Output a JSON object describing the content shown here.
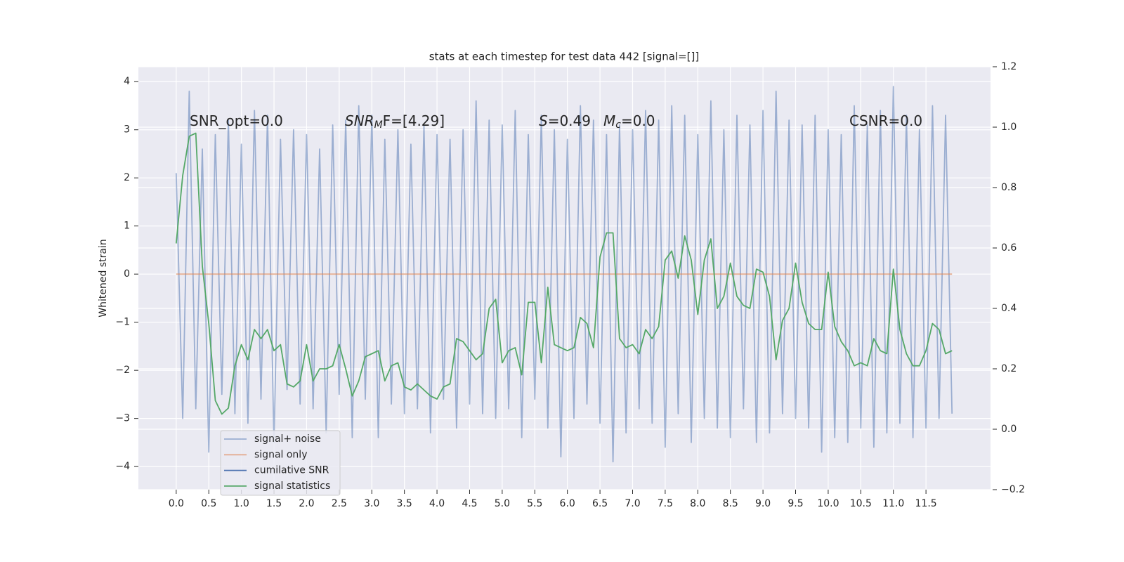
{
  "chart_data": {
    "type": "line",
    "title": "stats at each timestep for test data 442 [signal=[]]",
    "ylabel": "Whitened strain",
    "annotations": [
      [
        "SNR_opt=0.0"
      ],
      [
        "SNR",
        "M",
        "F=[4.29]"
      ],
      [
        "S",
        "=0.49"
      ],
      [
        "M",
        "c",
        "=0.0"
      ],
      [
        "CSNR=0.0"
      ]
    ],
    "grid": true,
    "xlim": [
      -0.58,
      12.49
    ],
    "ylim": [
      -4.48,
      4.31
    ],
    "y2lim": [
      -0.2,
      1.2
    ],
    "xticks": [
      {
        "value": 0,
        "label": "0.0"
      },
      0.5,
      {
        "value": 1,
        "label": "1.0"
      },
      1.5,
      {
        "value": 2,
        "label": "2.0"
      },
      2.5,
      {
        "value": 3,
        "label": "3.0"
      },
      3.5,
      {
        "value": 4,
        "label": "4.0"
      },
      4.5,
      {
        "value": 5,
        "label": "5.0"
      },
      5.5,
      {
        "value": 6,
        "label": "6.0"
      },
      6.5,
      {
        "value": 7,
        "label": "7.0"
      },
      7.5,
      {
        "value": 8,
        "label": "8.0"
      },
      8.5,
      {
        "value": 9,
        "label": "9.0"
      },
      9.5,
      {
        "value": 10,
        "label": "10.0"
      },
      10.5,
      {
        "value": 11,
        "label": "11.0"
      },
      11.5
    ],
    "yticks": [
      {
        "value": -4,
        "label": "−4"
      },
      {
        "value": -3,
        "label": "−3"
      },
      {
        "value": -2,
        "label": "−2"
      },
      {
        "value": -1,
        "label": "−1"
      },
      0,
      1,
      2,
      3,
      4
    ],
    "y2ticks": [
      {
        "value": -0.2,
        "label": "−0.2"
      },
      {
        "value": 0,
        "label": "0.0"
      },
      0.2,
      0.4,
      0.6,
      0.8,
      {
        "value": 1,
        "label": "1.0"
      },
      1.2
    ],
    "x": [
      0,
      0.1,
      0.2,
      0.3,
      0.4,
      0.5,
      0.6,
      0.7,
      0.8,
      0.9,
      1,
      1.1,
      1.2,
      1.3,
      1.4,
      1.5,
      1.6,
      1.7,
      1.8,
      1.9,
      2,
      2.1,
      2.2,
      2.3,
      2.4,
      2.5,
      2.6,
      2.7,
      2.8,
      2.9,
      3,
      3.1,
      3.2,
      3.3,
      3.4,
      3.5,
      3.6,
      3.7,
      3.8,
      3.9,
      4,
      4.1,
      4.2,
      4.3,
      4.4,
      4.5,
      4.6,
      4.7,
      4.8,
      4.9,
      5,
      5.1,
      5.2,
      5.3,
      5.4,
      5.5,
      5.6,
      5.7,
      5.8,
      5.9,
      6,
      6.1,
      6.2,
      6.3,
      6.4,
      6.5,
      6.6,
      6.7,
      6.8,
      6.9,
      7,
      7.1,
      7.2,
      7.3,
      7.4,
      7.5,
      7.6,
      7.7,
      7.8,
      7.9,
      8,
      8.1,
      8.2,
      8.3,
      8.4,
      8.5,
      8.6,
      8.7,
      8.8,
      8.9,
      9,
      9.1,
      9.2,
      9.3,
      9.4,
      9.5,
      9.6,
      9.7,
      9.8,
      9.9,
      10,
      10.1,
      10.2,
      10.3,
      10.4,
      10.5,
      10.6,
      10.7,
      10.8,
      10.9,
      11,
      11.1,
      11.2,
      11.3,
      11.4,
      11.5,
      11.6,
      11.7,
      11.8,
      11.9
    ],
    "series": [
      {
        "name": "signal+ noise",
        "color": "#4c72b0",
        "opacity": 0.5,
        "values": [
          2.1,
          -3.0,
          3.8,
          -2.8,
          2.6,
          -3.7,
          2.9,
          -2.5,
          3.2,
          -2.9,
          2.7,
          -3.1,
          3.4,
          -2.6,
          3.3,
          -3.5,
          2.8,
          -2.4,
          3.0,
          -2.7,
          2.9,
          -2.8,
          2.6,
          -3.3,
          3.1,
          -2.5,
          3.2,
          -3.4,
          3.5,
          -2.6,
          3.3,
          -3.4,
          2.8,
          -2.7,
          3.0,
          -2.9,
          2.7,
          -2.8,
          3.1,
          -3.3,
          2.9,
          -2.6,
          2.8,
          -3.2,
          3.0,
          -2.7,
          3.6,
          -2.9,
          3.2,
          -3.0,
          3.1,
          -2.8,
          3.4,
          -3.4,
          2.9,
          -2.6,
          3.3,
          -3.2,
          3.0,
          -3.8,
          2.8,
          -3.0,
          3.5,
          -2.7,
          3.2,
          -3.1,
          2.9,
          -3.9,
          3.1,
          -3.3,
          3.0,
          -2.8,
          3.4,
          -3.1,
          3.2,
          -3.6,
          3.5,
          -2.9,
          3.3,
          -3.5,
          2.9,
          -3.0,
          3.6,
          -3.2,
          3.0,
          -3.4,
          3.3,
          -2.8,
          3.1,
          -3.5,
          3.4,
          -3.3,
          3.8,
          -2.9,
          3.2,
          -3.0,
          3.1,
          -3.2,
          3.3,
          -3.7,
          3.0,
          -3.4,
          2.9,
          -3.5,
          3.5,
          -3.2,
          3.1,
          -3.6,
          3.4,
          -3.3,
          3.9,
          -3.1,
          3.3,
          -3.4,
          3.0,
          -3.2,
          3.5,
          -3.0,
          3.3,
          -2.9
        ]
      },
      {
        "name": "signal only",
        "color": "#dd8452",
        "opacity": 0.6,
        "x": [
          0,
          11.9
        ],
        "values": [
          0,
          0
        ]
      },
      {
        "name": "cumilative SNR",
        "color": "#4c72b0"
      },
      {
        "name": "signal statistics",
        "color": "#55a868",
        "axis": "y2",
        "values": [
          0.615,
          0.84,
          0.97,
          0.98,
          0.54,
          0.35,
          0.095,
          0.05,
          0.07,
          0.21,
          0.28,
          0.23,
          0.33,
          0.3,
          0.33,
          0.26,
          0.28,
          0.15,
          0.14,
          0.16,
          0.28,
          0.16,
          0.2,
          0.2,
          0.21,
          0.28,
          0.2,
          0.11,
          0.16,
          0.24,
          0.25,
          0.26,
          0.16,
          0.21,
          0.22,
          0.14,
          0.13,
          0.15,
          0.13,
          0.11,
          0.1,
          0.14,
          0.15,
          0.3,
          0.29,
          0.26,
          0.23,
          0.25,
          0.4,
          0.43,
          0.22,
          0.26,
          0.27,
          0.18,
          0.42,
          0.42,
          0.22,
          0.47,
          0.28,
          0.27,
          0.26,
          0.27,
          0.37,
          0.35,
          0.27,
          0.57,
          0.65,
          0.65,
          0.3,
          0.27,
          0.28,
          0.25,
          0.33,
          0.3,
          0.34,
          0.56,
          0.59,
          0.5,
          0.64,
          0.56,
          0.38,
          0.56,
          0.63,
          0.4,
          0.44,
          0.55,
          0.44,
          0.41,
          0.4,
          0.53,
          0.52,
          0.44,
          0.23,
          0.36,
          0.4,
          0.55,
          0.42,
          0.35,
          0.33,
          0.33,
          0.52,
          0.34,
          0.29,
          0.26,
          0.21,
          0.22,
          0.21,
          0.3,
          0.26,
          0.25,
          0.53,
          0.33,
          0.25,
          0.21,
          0.21,
          0.26,
          0.35,
          0.33,
          0.25,
          0.26
        ]
      }
    ]
  }
}
